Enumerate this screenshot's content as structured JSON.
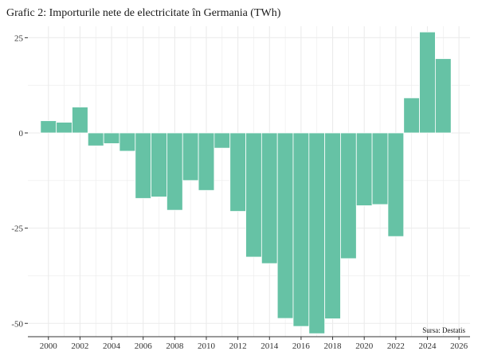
{
  "chart_data": {
    "type": "bar",
    "title": "Grafic 2: Importurile nete de electricitate în Germania (TWh)",
    "xlabel": "",
    "ylabel": "",
    "source": "Sursa: Destatis",
    "categories": [
      "2000",
      "2001",
      "2002",
      "2003",
      "2004",
      "2005",
      "2006",
      "2007",
      "2008",
      "2009",
      "2010",
      "2011",
      "2012",
      "2013",
      "2014",
      "2015",
      "2016",
      "2017",
      "2018",
      "2019",
      "2020",
      "2021",
      "2022",
      "2023",
      "2024",
      "2025"
    ],
    "values": [
      3.2,
      2.8,
      6.8,
      -3.4,
      -2.8,
      -4.8,
      -17.2,
      -16.8,
      -20.3,
      -12.5,
      -15.1,
      -4.0,
      -20.6,
      -32.6,
      -34.3,
      -48.7,
      -50.8,
      -52.7,
      -48.8,
      -33.0,
      -19.1,
      -18.8,
      -27.2,
      9.2,
      26.5,
      19.5
    ],
    "x_tick_labels": [
      "2000",
      "2002",
      "2004",
      "2006",
      "2008",
      "2010",
      "2012",
      "2014",
      "2016",
      "2018",
      "2020",
      "2022",
      "2024",
      "2026"
    ],
    "y_ticks": [
      25,
      0,
      -25,
      -50
    ],
    "y_tick_labels": [
      "25",
      "0",
      "-25",
      "-50"
    ],
    "ylim": [
      -53.5,
      28
    ],
    "xlim": [
      1998.7,
      2026.7
    ],
    "grid": true,
    "colors": {
      "bar": "#66c2a5",
      "grid": "#ebebeb",
      "axis_line": "#333333",
      "background": "#ffffff"
    }
  }
}
